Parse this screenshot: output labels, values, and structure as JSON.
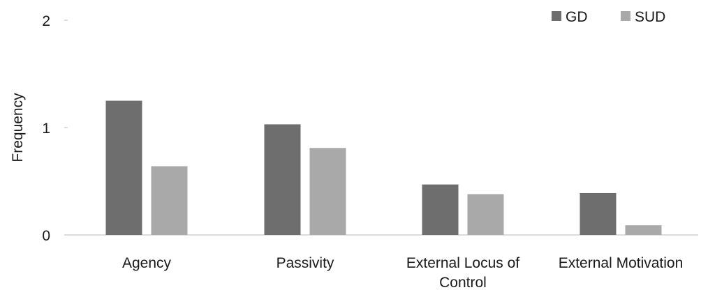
{
  "chart_data": {
    "type": "bar",
    "title": "",
    "xlabel": "",
    "ylabel": "Frequency",
    "ylim": [
      0,
      2
    ],
    "yticks": [
      "0",
      "1",
      "2"
    ],
    "ytick_values": [
      0,
      1,
      2
    ],
    "grid": false,
    "legend_position": "top-right",
    "categories": [
      [
        "Agency"
      ],
      [
        "Passivity"
      ],
      [
        "External Locus of",
        "Control"
      ],
      [
        "External Motivation"
      ]
    ],
    "series": [
      {
        "name": "GD",
        "color": "#6e6e6e",
        "values": [
          1.25,
          1.03,
          0.47,
          0.39
        ]
      },
      {
        "name": "SUD",
        "color": "#a9a9a9",
        "values": [
          0.64,
          0.81,
          0.38,
          0.09
        ]
      }
    ]
  }
}
